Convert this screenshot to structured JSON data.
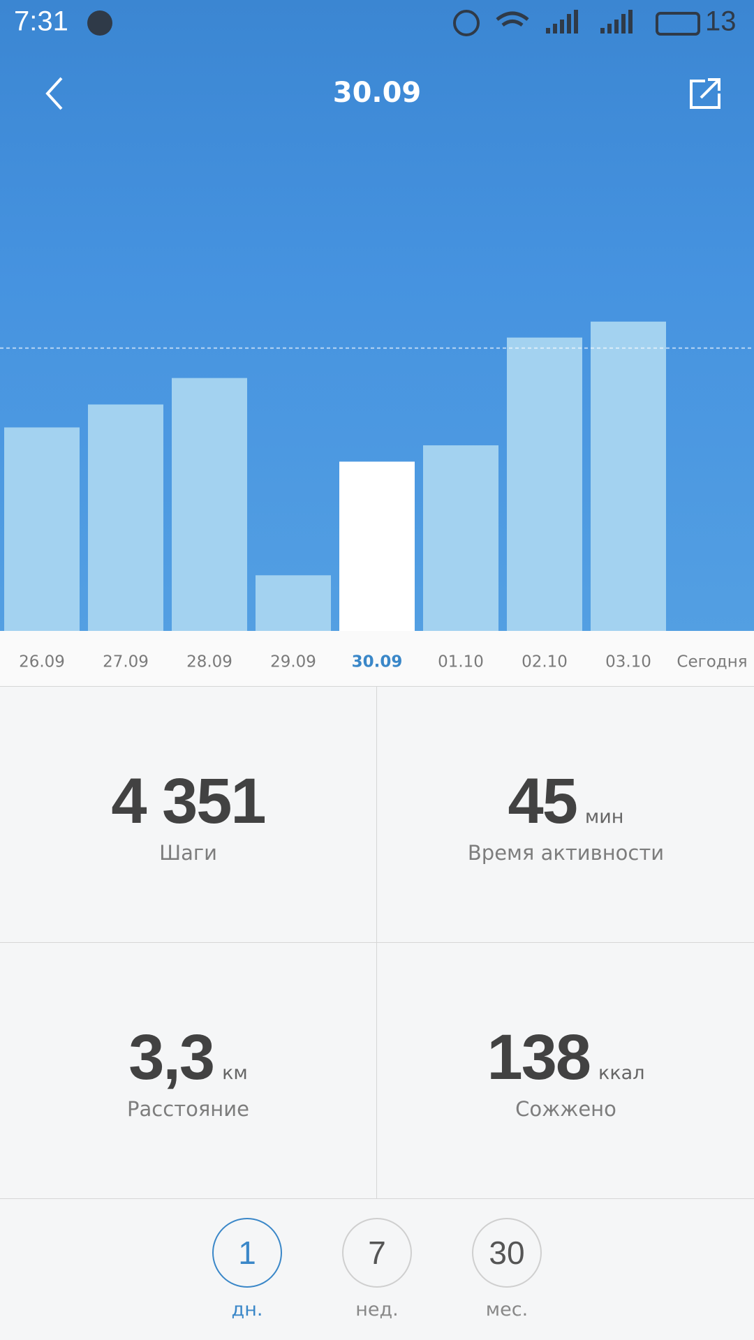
{
  "status_bar": {
    "time": "7:31",
    "battery": "13"
  },
  "header": {
    "title": "30.09"
  },
  "chart_data": {
    "type": "bar",
    "categories": [
      "26.09",
      "27.09",
      "28.09",
      "29.09",
      "30.09",
      "01.10",
      "02.10",
      "03.10",
      "Сегодня"
    ],
    "values": [
      5230,
      5820,
      6500,
      1430,
      4351,
      4770,
      7540,
      7950,
      null
    ],
    "color": "#a3d2f0",
    "selected_index": 4,
    "selected_color": "#ffffff",
    "selected_label_color": "#3a87c8",
    "goal": 7270,
    "ylim": [
      0,
      12700
    ]
  },
  "stats": [
    {
      "value": "4 351",
      "label": "Шаги"
    },
    {
      "value": "45",
      "unit": "мин",
      "label": "Время активности"
    },
    {
      "value": "3,3",
      "unit": "км",
      "label": "Расстояние"
    },
    {
      "value": "138",
      "unit": "ккал",
      "label": "Сожжено"
    }
  ],
  "tabs": [
    {
      "value": "1",
      "label": "дн."
    },
    {
      "value": "7",
      "label": "нед."
    },
    {
      "value": "30",
      "label": "мес."
    }
  ],
  "active_tab": 0
}
